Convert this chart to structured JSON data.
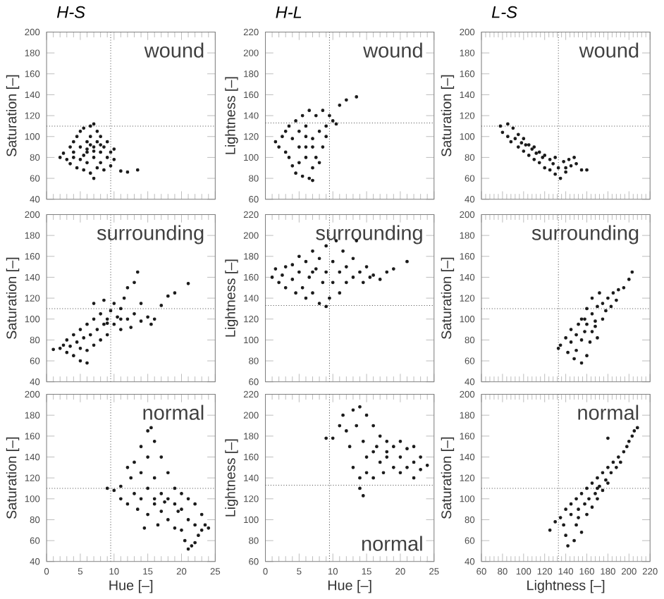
{
  "chart_data": [
    {
      "type": "scatter",
      "title": "H-S",
      "ylabel": "Saturation [–]",
      "annotations": [
        "wound"
      ],
      "color": "#1a1a1a",
      "tick_labels": "y",
      "xlim": [
        0,
        25
      ],
      "xticks": [
        0,
        5,
        10,
        15,
        20,
        25
      ],
      "ylim": [
        40,
        200
      ],
      "yticks": [
        40,
        60,
        80,
        100,
        120,
        140,
        160,
        180,
        200
      ],
      "ref_lines": [
        {
          "axis": "x",
          "value": 9.5
        },
        {
          "axis": "y",
          "value": 110
        }
      ],
      "x": [
        2,
        2.5,
        3,
        3.5,
        3.5,
        4,
        4,
        4.5,
        4.5,
        5,
        5,
        5,
        5.5,
        5.5,
        6,
        6,
        6,
        6.5,
        6.5,
        6.5,
        7,
        7,
        7,
        7,
        7.5,
        7.5,
        7.5,
        8,
        8,
        8,
        8.5,
        8.5,
        9,
        9,
        9.5,
        9.5,
        10,
        10,
        11,
        12,
        13.5,
        6,
        5.5,
        7,
        6.5,
        4,
        8
      ],
      "values": [
        80,
        84,
        78,
        90,
        74,
        95,
        85,
        70,
        100,
        105,
        90,
        78,
        68,
        108,
        95,
        85,
        75,
        110,
        65,
        100,
        90,
        80,
        112,
        60,
        70,
        95,
        105,
        85,
        75,
        100,
        90,
        68,
        80,
        95,
        85,
        72,
        78,
        88,
        67,
        66,
        68,
        88,
        82,
        86,
        92,
        80,
        92
      ]
    },
    {
      "type": "scatter",
      "title": "H-L",
      "ylabel": "Lightness [–]",
      "annotations": [
        "wound"
      ],
      "color": "#1a1a1a",
      "tick_labels": "y",
      "xlim": [
        0,
        25
      ],
      "xticks": [
        0,
        5,
        10,
        15,
        20,
        25
      ],
      "ylim": [
        60,
        220
      ],
      "yticks": [
        60,
        80,
        100,
        120,
        140,
        160,
        180,
        200,
        220
      ],
      "ref_lines": [
        {
          "axis": "x",
          "value": 9.5
        },
        {
          "axis": "y",
          "value": 133
        }
      ],
      "x": [
        1.5,
        2,
        2.5,
        3,
        3,
        3.5,
        3.5,
        4,
        4,
        4.5,
        4.5,
        5,
        5,
        5,
        5.5,
        5.5,
        6,
        6,
        6,
        6.5,
        6.5,
        7,
        7,
        7,
        7.5,
        7.5,
        8,
        8,
        8.5,
        8.5,
        9,
        9,
        9.5,
        10,
        10.5,
        11,
        12,
        13.5,
        6,
        7
      ],
      "values": [
        115,
        110,
        120,
        105,
        125,
        100,
        130,
        92,
        118,
        135,
        85,
        110,
        125,
        95,
        140,
        82,
        100,
        120,
        130,
        80,
        145,
        90,
        110,
        78,
        140,
        100,
        125,
        95,
        145,
        110,
        130,
        120,
        140,
        135,
        132,
        150,
        155,
        158,
        110,
        118
      ]
    },
    {
      "type": "scatter",
      "title": "L-S",
      "ylabel": "Saturation [–]",
      "annotations": [
        "wound"
      ],
      "color": "#1a1a1a",
      "tick_labels": "y",
      "xlim": [
        60,
        220
      ],
      "xticks": [
        60,
        80,
        100,
        120,
        140,
        160,
        180,
        200,
        220
      ],
      "ylim": [
        40,
        200
      ],
      "yticks": [
        40,
        60,
        80,
        100,
        120,
        140,
        160,
        180,
        200
      ],
      "ref_lines": [
        {
          "axis": "x",
          "value": 133
        },
        {
          "axis": "y",
          "value": 110
        }
      ],
      "x": [
        78,
        80,
        85,
        85,
        88,
        90,
        92,
        95,
        95,
        98,
        100,
        100,
        105,
        105,
        108,
        110,
        110,
        115,
        115,
        118,
        120,
        120,
        125,
        125,
        128,
        130,
        130,
        133,
        135,
        138,
        140,
        140,
        143,
        145,
        148,
        150,
        155,
        160,
        102,
        112
      ],
      "values": [
        110,
        104,
        112,
        100,
        95,
        108,
        98,
        90,
        102,
        94,
        86,
        98,
        82,
        92,
        88,
        78,
        90,
        75,
        85,
        80,
        70,
        82,
        68,
        78,
        74,
        64,
        80,
        70,
        60,
        76,
        70,
        66,
        78,
        72,
        80,
        74,
        68,
        68,
        92,
        84
      ]
    },
    {
      "type": "scatter",
      "ylabel": "Saturation [–]",
      "annotations": [
        "surrounding"
      ],
      "color": "#1a1a1a",
      "tick_labels": "y",
      "xlim": [
        0,
        25
      ],
      "xticks": [
        0,
        5,
        10,
        15,
        20,
        25
      ],
      "ylim": [
        40,
        200
      ],
      "yticks": [
        40,
        60,
        80,
        100,
        120,
        140,
        160,
        180,
        200
      ],
      "ref_lines": [
        {
          "axis": "x",
          "value": 9.5
        },
        {
          "axis": "y",
          "value": 110
        }
      ],
      "x": [
        1,
        2,
        2.5,
        3,
        3,
        3.5,
        4,
        4,
        4.5,
        5,
        5,
        5,
        5.5,
        6,
        6,
        6,
        6.5,
        7,
        7,
        7,
        7.5,
        8,
        8,
        8.5,
        8.5,
        9,
        9,
        9.5,
        10,
        10,
        10.5,
        11,
        11,
        11.5,
        12,
        12,
        12.5,
        13,
        13,
        13.5,
        14,
        14,
        15,
        15.5,
        16,
        17,
        18,
        19,
        21,
        9,
        11
      ],
      "values": [
        71,
        72,
        75,
        68,
        80,
        74,
        65,
        85,
        78,
        60,
        90,
        72,
        82,
        70,
        95,
        58,
        85,
        75,
        100,
        115,
        90,
        80,
        105,
        95,
        118,
        85,
        100,
        108,
        95,
        115,
        102,
        90,
        110,
        120,
        100,
        130,
        92,
        105,
        135,
        145,
        98,
        115,
        102,
        95,
        100,
        113,
        122,
        125,
        134,
        96,
        100
      ]
    },
    {
      "type": "scatter",
      "ylabel": "Lightness [–]",
      "annotations": [
        "surrounding"
      ],
      "color": "#1a1a1a",
      "tick_labels": "y",
      "xlim": [
        0,
        25
      ],
      "xticks": [
        0,
        5,
        10,
        15,
        20,
        25
      ],
      "ylim": [
        60,
        220
      ],
      "yticks": [
        60,
        80,
        100,
        120,
        140,
        160,
        180,
        200,
        220
      ],
      "ref_lines": [
        {
          "axis": "x",
          "value": 9.5
        },
        {
          "axis": "y",
          "value": 133
        }
      ],
      "x": [
        1,
        1.5,
        2,
        2.5,
        3,
        3,
        4,
        4,
        4.5,
        5,
        5,
        5.5,
        6,
        6,
        6.5,
        7,
        7,
        7.5,
        8,
        8,
        8.5,
        9,
        9,
        9,
        9.5,
        10,
        10,
        10.5,
        11,
        11,
        11.5,
        12,
        12,
        13,
        13,
        13.5,
        14,
        14.5,
        15,
        15.5,
        16,
        17,
        18,
        19,
        21,
        7
      ],
      "values": [
        160,
        168,
        155,
        162,
        170,
        150,
        158,
        172,
        145,
        165,
        180,
        150,
        175,
        140,
        160,
        185,
        145,
        168,
        135,
        178,
        155,
        132,
        190,
        165,
        140,
        175,
        155,
        195,
        165,
        145,
        185,
        170,
        155,
        178,
        160,
        195,
        165,
        155,
        170,
        160,
        162,
        158,
        165,
        168,
        175,
        165
      ]
    },
    {
      "type": "scatter",
      "ylabel": "Saturation [–]",
      "annotations": [
        "surrounding"
      ],
      "color": "#1a1a1a",
      "tick_labels": "y",
      "xlim": [
        60,
        220
      ],
      "xticks": [
        60,
        80,
        100,
        120,
        140,
        160,
        180,
        200,
        220
      ],
      "ylim": [
        40,
        200
      ],
      "yticks": [
        40,
        60,
        80,
        100,
        120,
        140,
        160,
        180,
        200
      ],
      "ref_lines": [
        {
          "axis": "x",
          "value": 133
        },
        {
          "axis": "y",
          "value": 110
        }
      ],
      "x": [
        133,
        135,
        140,
        142,
        145,
        145,
        148,
        150,
        150,
        152,
        155,
        155,
        155,
        158,
        160,
        160,
        160,
        163,
        165,
        165,
        165,
        168,
        170,
        170,
        172,
        175,
        175,
        178,
        180,
        183,
        185,
        188,
        190,
        195,
        200,
        203,
        158,
        168
      ],
      "values": [
        72,
        75,
        82,
        68,
        78,
        90,
        62,
        85,
        70,
        95,
        58,
        80,
        100,
        88,
        65,
        110,
        95,
        78,
        105,
        120,
        88,
        98,
        82,
        112,
        125,
        100,
        115,
        108,
        120,
        112,
        125,
        118,
        128,
        130,
        138,
        145,
        100,
        93
      ]
    },
    {
      "type": "scatter",
      "xlabel": "Hue [–]",
      "ylabel": "Saturation [–]",
      "annotations": [
        "normal"
      ],
      "color": "#1a1a1a",
      "xlim": [
        0,
        25
      ],
      "xticks": [
        0,
        5,
        10,
        15,
        20,
        25
      ],
      "ylim": [
        40,
        200
      ],
      "yticks": [
        40,
        60,
        80,
        100,
        120,
        140,
        160,
        180,
        200
      ],
      "ref_lines": [
        {
          "axis": "x",
          "value": 9.5
        },
        {
          "axis": "y",
          "value": 110
        }
      ],
      "x": [
        9,
        10,
        11,
        11,
        12,
        12,
        12.5,
        13,
        13,
        13.5,
        14,
        14,
        14,
        14.5,
        15,
        15,
        15,
        15,
        15.5,
        16,
        16,
        16,
        16.5,
        17,
        17,
        17,
        18,
        18,
        18,
        19,
        19,
        19,
        20,
        20,
        20,
        20.5,
        21,
        21,
        21,
        22,
        22,
        22,
        22.5,
        23,
        23,
        23.5,
        24,
        21.5,
        19.5,
        17.5,
        16
      ],
      "values": [
        110,
        108,
        112,
        100,
        95,
        130,
        120,
        135,
        105,
        90,
        150,
        125,
        100,
        72,
        165,
        140,
        110,
        85,
        168,
        155,
        95,
        120,
        75,
        140,
        105,
        88,
        125,
        100,
        80,
        110,
        95,
        72,
        105,
        90,
        70,
        60,
        100,
        80,
        52,
        95,
        75,
        58,
        65,
        85,
        70,
        75,
        72,
        55,
        88,
        97,
        100
      ]
    },
    {
      "type": "scatter",
      "xlabel": "Hue [–]",
      "ylabel": "Lightness [–]",
      "annotations": [
        "normal"
      ],
      "color": "#1a1a1a",
      "xlim": [
        0,
        25
      ],
      "xticks": [
        0,
        5,
        10,
        15,
        20,
        25
      ],
      "ylim": [
        60,
        220
      ],
      "yticks": [
        60,
        80,
        100,
        120,
        140,
        160,
        180,
        200,
        220
      ],
      "ref_lines": [
        {
          "axis": "x",
          "value": 9.5
        },
        {
          "axis": "y",
          "value": 133
        }
      ],
      "x": [
        9,
        10,
        11,
        11.5,
        12,
        12.5,
        13,
        13,
        13.5,
        14,
        14,
        14,
        14.5,
        14.5,
        15,
        15,
        15,
        16,
        16,
        16,
        17,
        17,
        17.5,
        18,
        18,
        19,
        19,
        20,
        20,
        20,
        21,
        21,
        22,
        22,
        22,
        23,
        23,
        24,
        18,
        16.5
      ],
      "values": [
        178,
        178,
        190,
        200,
        185,
        170,
        205,
        150,
        190,
        208,
        140,
        130,
        123,
        175,
        200,
        160,
        145,
        190,
        165,
        140,
        180,
        155,
        145,
        175,
        160,
        170,
        150,
        175,
        145,
        160,
        168,
        150,
        170,
        155,
        140,
        160,
        148,
        152,
        165,
        170
      ]
    },
    {
      "type": "scatter",
      "xlabel": "Lightness [–]",
      "ylabel": "Saturation [–]",
      "annotations": [
        "normal"
      ],
      "color": "#1a1a1a",
      "xlim": [
        60,
        220
      ],
      "xticks": [
        60,
        80,
        100,
        120,
        140,
        160,
        180,
        200,
        220
      ],
      "ylim": [
        40,
        200
      ],
      "yticks": [
        40,
        60,
        80,
        100,
        120,
        140,
        160,
        180,
        200
      ],
      "ref_lines": [
        {
          "axis": "x",
          "value": 133
        },
        {
          "axis": "y",
          "value": 110
        }
      ],
      "x": [
        125,
        130,
        135,
        138,
        140,
        140,
        142,
        145,
        145,
        148,
        150,
        150,
        152,
        155,
        155,
        158,
        160,
        160,
        162,
        165,
        165,
        168,
        170,
        170,
        172,
        175,
        175,
        178,
        180,
        180,
        183,
        185,
        188,
        190,
        192,
        195,
        198,
        200,
        203,
        205,
        208,
        180,
        152,
        170
      ],
      "values": [
        70,
        78,
        82,
        75,
        90,
        65,
        55,
        95,
        85,
        60,
        100,
        75,
        90,
        105,
        68,
        95,
        110,
        85,
        100,
        115,
        92,
        105,
        120,
        100,
        112,
        125,
        108,
        118,
        130,
        115,
        125,
        135,
        130,
        140,
        135,
        145,
        150,
        155,
        160,
        165,
        168,
        158,
        82,
        110
      ]
    }
  ]
}
